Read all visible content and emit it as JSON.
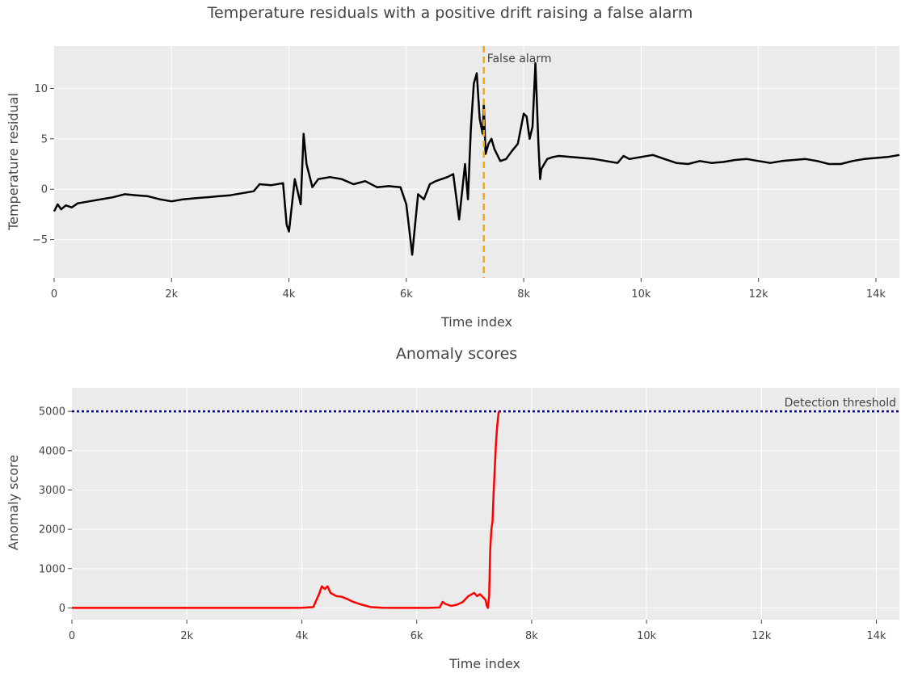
{
  "chart_data": [
    {
      "type": "line",
      "title": "Temperature residuals with a positive drift raising a false alarm",
      "xlabel": "Time index",
      "ylabel": "Temperature residual",
      "xlim": [
        0,
        14400
      ],
      "ylim": [
        -8.8,
        14.2
      ],
      "xticks": [
        0,
        2000,
        4000,
        6000,
        8000,
        10000,
        12000,
        14000
      ],
      "xtick_labels": [
        "0",
        "2k",
        "4k",
        "6k",
        "8k",
        "10k",
        "12k",
        "14k"
      ],
      "yticks": [
        -5,
        0,
        5,
        10
      ],
      "ytick_labels": [
        "−5",
        "0",
        "5",
        "10"
      ],
      "grid": true,
      "series": [
        {
          "color": "#000000",
          "x": [
            0,
            60,
            120,
            200,
            300,
            400,
            600,
            800,
            1000,
            1200,
            1400,
            1600,
            1800,
            2000,
            2200,
            2400,
            2600,
            2800,
            3000,
            3200,
            3400,
            3500,
            3700,
            3900,
            3960,
            4000,
            4100,
            4200,
            4250,
            4300,
            4400,
            4500,
            4700,
            4900,
            5100,
            5300,
            5500,
            5700,
            5900,
            6000,
            6050,
            6100,
            6150,
            6200,
            6300,
            6400,
            6500,
            6600,
            6700,
            6800,
            6900,
            7000,
            7050,
            7100,
            7150,
            7200,
            7250,
            7300,
            7320,
            7350,
            7400,
            7450,
            7500,
            7600,
            7700,
            7800,
            7900,
            8000,
            8050,
            8100,
            8150,
            8200,
            8250,
            8280,
            8300,
            8350,
            8400,
            8500,
            8600,
            8800,
            9000,
            9200,
            9400,
            9600,
            9700,
            9800,
            10000,
            10200,
            10400,
            10600,
            10800,
            11000,
            11200,
            11400,
            11600,
            11800,
            12000,
            12200,
            12400,
            12600,
            12800,
            13000,
            13200,
            13400,
            13600,
            13800,
            14000,
            14200,
            14400
          ],
          "y": [
            -2.2,
            -1.5,
            -2.0,
            -1.6,
            -1.8,
            -1.4,
            -1.2,
            -1.0,
            -0.8,
            -0.5,
            -0.6,
            -0.7,
            -1.0,
            -1.2,
            -1.0,
            -0.9,
            -0.8,
            -0.7,
            -0.6,
            -0.4,
            -0.2,
            0.5,
            0.4,
            0.6,
            -3.5,
            -4.2,
            1.0,
            -1.5,
            5.5,
            2.5,
            0.2,
            1.0,
            1.2,
            1.0,
            0.5,
            0.8,
            0.2,
            0.3,
            0.2,
            -1.5,
            -4.0,
            -6.5,
            -3.5,
            -0.5,
            -1.0,
            0.5,
            0.8,
            1.0,
            1.2,
            1.5,
            -3.0,
            2.5,
            -1.0,
            6.0,
            10.5,
            11.5,
            7.0,
            5.5,
            8.5,
            3.5,
            4.5,
            5.0,
            4.0,
            2.8,
            3.0,
            3.8,
            4.5,
            7.5,
            7.2,
            5.0,
            6.2,
            12.5,
            4.5,
            1.0,
            2.0,
            2.5,
            3.0,
            3.2,
            3.3,
            3.2,
            3.1,
            3.0,
            2.8,
            2.6,
            3.3,
            3.0,
            3.2,
            3.4,
            3.0,
            2.6,
            2.5,
            2.8,
            2.6,
            2.7,
            2.9,
            3.0,
            2.8,
            2.6,
            2.8,
            2.9,
            3.0,
            2.8,
            2.5,
            2.5,
            2.8,
            3.0,
            3.1,
            3.2,
            3.4
          ]
        }
      ],
      "annotations": {
        "vline_x": 7320,
        "vline_color": "#ffa500",
        "vline_label": "False alarm"
      }
    },
    {
      "type": "line",
      "title": "Anomaly scores",
      "xlabel": "Time index",
      "ylabel": "Anomaly score",
      "xlim": [
        0,
        14400
      ],
      "ylim": [
        -300,
        5600
      ],
      "xticks": [
        0,
        2000,
        4000,
        6000,
        8000,
        10000,
        12000,
        14000
      ],
      "xtick_labels": [
        "0",
        "2k",
        "4k",
        "6k",
        "8k",
        "10k",
        "12k",
        "14k"
      ],
      "yticks": [
        0,
        1000,
        2000,
        3000,
        4000,
        5000
      ],
      "ytick_labels": [
        "0",
        "1000",
        "2000",
        "3000",
        "4000",
        "5000"
      ],
      "grid": true,
      "series": [
        {
          "color": "#ff0000",
          "x": [
            0,
            1000,
            2000,
            3000,
            3900,
            4000,
            4200,
            4300,
            4350,
            4400,
            4450,
            4500,
            4600,
            4700,
            4800,
            4900,
            5000,
            5100,
            5200,
            5400,
            5600,
            5800,
            6000,
            6200,
            6400,
            6450,
            6500,
            6600,
            6700,
            6800,
            6900,
            7000,
            7050,
            7100,
            7150,
            7200,
            7220,
            7240,
            7260,
            7280,
            7300,
            7320,
            7340,
            7360,
            7380,
            7400,
            7420,
            7430
          ],
          "y": [
            0,
            0,
            0,
            0,
            0,
            5,
            20,
            350,
            550,
            480,
            550,
            380,
            300,
            280,
            220,
            150,
            100,
            60,
            20,
            5,
            0,
            0,
            0,
            0,
            10,
            150,
            100,
            50,
            80,
            150,
            300,
            380,
            300,
            350,
            280,
            200,
            50,
            0,
            300,
            1500,
            2000,
            2200,
            3000,
            3600,
            4200,
            4600,
            4900,
            5000
          ]
        }
      ],
      "threshold": {
        "y": 5000,
        "label": "Detection threshold",
        "color": "#0000cc"
      }
    }
  ]
}
